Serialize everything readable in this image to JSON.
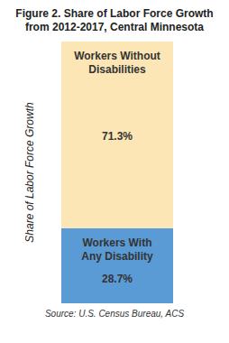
{
  "chart_data": {
    "type": "bar",
    "title": "Figure 2. Share of Labor Force Growth from 2012-2017, Central Minnesota",
    "y_label": "Share of Labor Force Growth",
    "source": "Source: U.S. Census Bureau, ACS",
    "categories": [
      null
    ],
    "stacked": true,
    "data_labels": true,
    "tick_labels": false,
    "ylim": [
      0,
      100
    ],
    "series": [
      {
        "name": "Workers With Any Disability",
        "color": "#5b9bd5",
        "values": [
          28.7
        ],
        "value_labels": [
          "28.7%"
        ]
      },
      {
        "name": "Workers Without Disabilities",
        "color": "#fde6b5",
        "values": [
          71.3
        ],
        "value_labels": [
          "71.3%"
        ]
      }
    ]
  }
}
